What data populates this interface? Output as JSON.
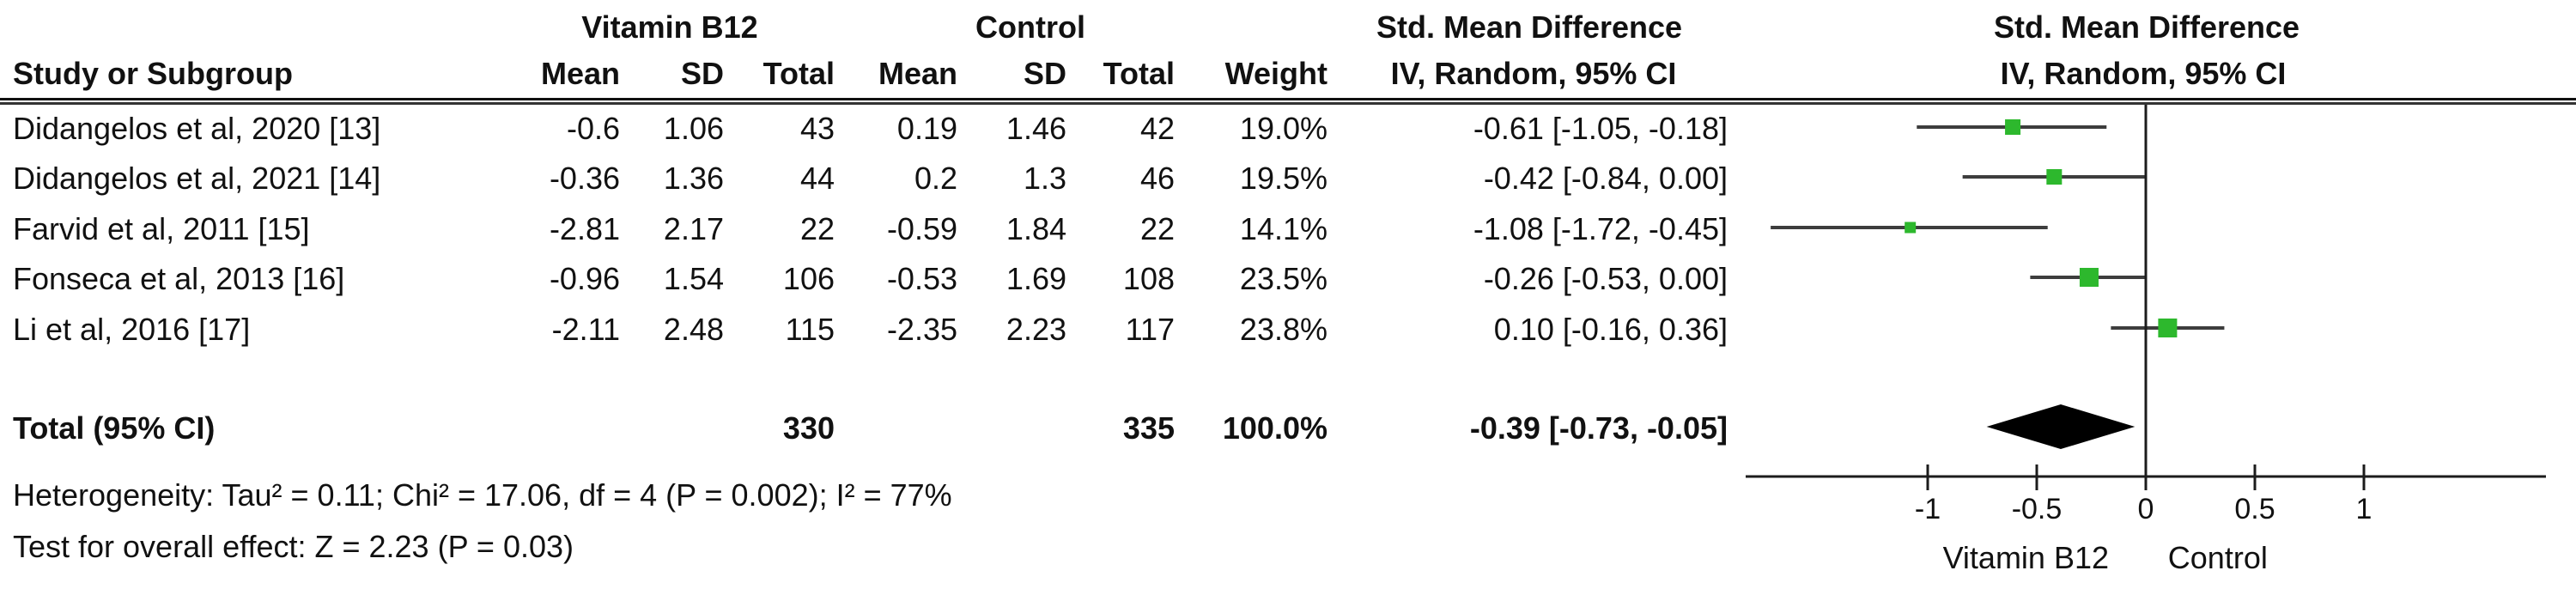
{
  "table": {
    "headers": {
      "group1": "Vitamin B12",
      "group2": "Control",
      "study": "Study or Subgroup",
      "mean1": "Mean",
      "sd1": "SD",
      "total1": "Total",
      "mean2": "Mean",
      "sd2": "SD",
      "total2": "Total",
      "weight": "Weight",
      "effect": "Std. Mean Difference",
      "method": "IV, Random, 95% CI",
      "effect_plot": "Std. Mean Difference",
      "method_plot": "IV, Random, 95% CI"
    },
    "rows": [
      {
        "study": "Didangelos et al, 2020 [13]",
        "b12_mean": "-0.6",
        "b12_sd": "1.06",
        "b12_total": "43",
        "ctrl_mean": "0.19",
        "ctrl_sd": "1.46",
        "ctrl_total": "42",
        "weight": "19.0%",
        "ci_text": "-0.61 [-1.05, -0.18]"
      },
      {
        "study": "Didangelos et al, 2021 [14]",
        "b12_mean": "-0.36",
        "b12_sd": "1.36",
        "b12_total": "44",
        "ctrl_mean": "0.2",
        "ctrl_sd": "1.3",
        "ctrl_total": "46",
        "weight": "19.5%",
        "ci_text": "-0.42 [-0.84, 0.00]"
      },
      {
        "study": "Farvid et al, 2011 [15]",
        "b12_mean": "-2.81",
        "b12_sd": "2.17",
        "b12_total": "22",
        "ctrl_mean": "-0.59",
        "ctrl_sd": "1.84",
        "ctrl_total": "22",
        "weight": "14.1%",
        "ci_text": "-1.08 [-1.72, -0.45]"
      },
      {
        "study": "Fonseca et al, 2013 [16]",
        "b12_mean": "-0.96",
        "b12_sd": "1.54",
        "b12_total": "106",
        "ctrl_mean": "-0.53",
        "ctrl_sd": "1.69",
        "ctrl_total": "108",
        "weight": "23.5%",
        "ci_text": "-0.26 [-0.53, 0.00]"
      },
      {
        "study": "Li et al, 2016 [17]",
        "b12_mean": "-2.11",
        "b12_sd": "2.48",
        "b12_total": "115",
        "ctrl_mean": "-2.35",
        "ctrl_sd": "2.23",
        "ctrl_total": "117",
        "weight": "23.8%",
        "ci_text": "0.10 [-0.16, 0.36]"
      }
    ],
    "total_row": {
      "label": "Total (95% CI)",
      "b12_total": "330",
      "ctrl_total": "335",
      "weight": "100.0%",
      "ci_text": "-0.39 [-0.73, -0.05]"
    },
    "footers": {
      "heterogeneity": "Heterogeneity: Tau² = 0.11; Chi² = 17.06, df = 4 (P = 0.002); I² = 77%",
      "overall_effect": "Test for overall effect: Z = 2.23 (P = 0.03)"
    }
  },
  "chart_data": {
    "type": "forest",
    "effect_measure": "Std. Mean Difference",
    "model": "IV, Random, 95% CI",
    "studies": [
      {
        "name": "Didangelos et al, 2020 [13]",
        "smd": -0.61,
        "ci_low": -1.05,
        "ci_high": -0.18,
        "weight": 19.0
      },
      {
        "name": "Didangelos et al, 2021 [14]",
        "smd": -0.42,
        "ci_low": -0.84,
        "ci_high": 0.0,
        "weight": 19.5
      },
      {
        "name": "Farvid et al, 2011 [15]",
        "smd": -1.08,
        "ci_low": -1.72,
        "ci_high": -0.45,
        "weight": 14.1
      },
      {
        "name": "Fonseca et al, 2013 [16]",
        "smd": -0.26,
        "ci_low": -0.53,
        "ci_high": 0.0,
        "weight": 23.5
      },
      {
        "name": "Li et al, 2016 [17]",
        "smd": 0.1,
        "ci_low": -0.16,
        "ci_high": 0.36,
        "weight": 23.8
      }
    ],
    "total": {
      "label": "Total (95% CI)",
      "smd": -0.39,
      "ci_low": -0.73,
      "ci_high": -0.05,
      "weight": 100.0
    },
    "axis": {
      "ticks": [
        -1,
        -0.5,
        0,
        0.5,
        1
      ],
      "tick_labels": [
        "-1",
        "-0.5",
        "0",
        "0.5",
        "1"
      ],
      "xmin": -1.83,
      "xmax": 1.83,
      "favours_left_label": "Vitamin B12",
      "favours_right_label": "Control"
    },
    "heterogeneity": {
      "tau2": 0.11,
      "chi2": 17.06,
      "df": 4,
      "p": 0.002,
      "i2_pct": 77
    },
    "overall_effect": {
      "z": 2.23,
      "p": 0.03
    },
    "colors": {
      "square": "#2db82d",
      "diamond": "#000000",
      "ci_line": "#3d3d3d",
      "axis": "#1c1c1c",
      "text": "#111111"
    }
  }
}
